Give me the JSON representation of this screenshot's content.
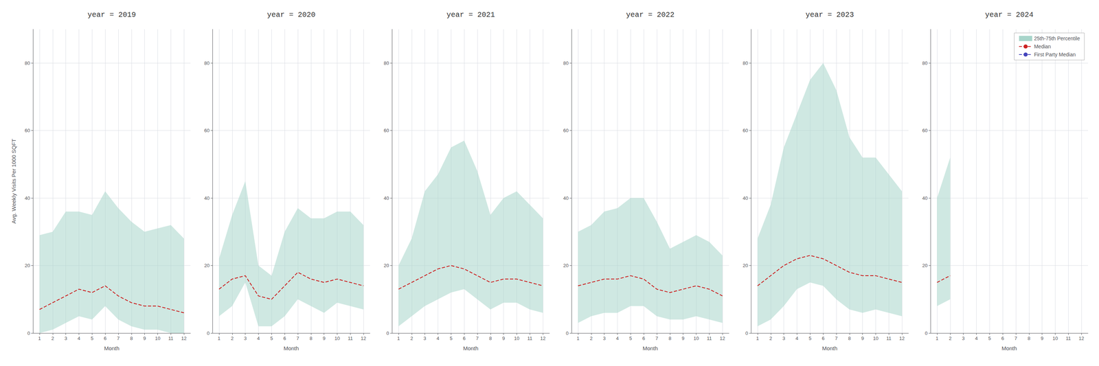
{
  "chart_data": [
    {
      "type": "line",
      "title": "year = 2019",
      "x_label": "Month",
      "y_label": "Avg. Weekly Visits Per 1000 SQFT",
      "x": [
        1,
        2,
        3,
        4,
        5,
        6,
        7,
        8,
        9,
        10,
        11,
        12
      ],
      "xlim": [
        0.5,
        12.5
      ],
      "xticks": [
        1,
        2,
        3,
        4,
        5,
        6,
        7,
        8,
        9,
        10,
        11,
        12
      ],
      "ylim": [
        0,
        90
      ],
      "yticks": [
        0,
        20,
        40,
        60,
        80
      ],
      "grid": true,
      "series": [
        {
          "name": "25th-75th Percentile",
          "type": "band",
          "color": "#a8d5ca",
          "lower": [
            0,
            1,
            3,
            5,
            4,
            8,
            4,
            2,
            1,
            1,
            0,
            0
          ],
          "upper": [
            29,
            30,
            36,
            36,
            35,
            42,
            37,
            33,
            30,
            31,
            32,
            28
          ]
        },
        {
          "name": "Median",
          "type": "line",
          "color": "#cc2222",
          "line_style": "dashed",
          "values": [
            7,
            9,
            11,
            13,
            12,
            14,
            11,
            9,
            8,
            8,
            7,
            6
          ]
        }
      ]
    },
    {
      "type": "line",
      "title": "year = 2020",
      "x_label": "Month",
      "x": [
        1,
        2,
        3,
        4,
        5,
        6,
        7,
        8,
        9,
        10,
        11,
        12
      ],
      "xlim": [
        0.5,
        12.5
      ],
      "xticks": [
        1,
        2,
        3,
        4,
        5,
        6,
        7,
        8,
        9,
        10,
        11,
        12
      ],
      "ylim": [
        0,
        90
      ],
      "yticks": [
        0,
        20,
        40,
        60,
        80
      ],
      "grid": true,
      "series": [
        {
          "name": "25th-75th Percentile",
          "type": "band",
          "color": "#a8d5ca",
          "lower": [
            5,
            8,
            15,
            2,
            2,
            5,
            10,
            8,
            6,
            9,
            8,
            7
          ],
          "upper": [
            22,
            35,
            45,
            20,
            17,
            30,
            37,
            34,
            34,
            36,
            36,
            32
          ]
        },
        {
          "name": "Median",
          "type": "line",
          "color": "#cc2222",
          "line_style": "dashed",
          "values": [
            13,
            16,
            17,
            11,
            10,
            14,
            18,
            16,
            15,
            16,
            15,
            14
          ]
        }
      ]
    },
    {
      "type": "line",
      "title": "year = 2021",
      "x_label": "Month",
      "x": [
        1,
        2,
        3,
        4,
        5,
        6,
        7,
        8,
        9,
        10,
        11,
        12
      ],
      "xlim": [
        0.5,
        12.5
      ],
      "xticks": [
        1,
        2,
        3,
        4,
        5,
        6,
        7,
        8,
        9,
        10,
        11,
        12
      ],
      "ylim": [
        0,
        90
      ],
      "yticks": [
        0,
        20,
        40,
        60,
        80
      ],
      "grid": true,
      "series": [
        {
          "name": "25th-75th Percentile",
          "type": "band",
          "color": "#a8d5ca",
          "lower": [
            2,
            5,
            8,
            10,
            12,
            13,
            10,
            7,
            9,
            9,
            7,
            6
          ],
          "upper": [
            20,
            28,
            42,
            47,
            55,
            57,
            48,
            35,
            40,
            42,
            38,
            34
          ]
        },
        {
          "name": "Median",
          "type": "line",
          "color": "#cc2222",
          "line_style": "dashed",
          "values": [
            13,
            15,
            17,
            19,
            20,
            19,
            17,
            15,
            16,
            16,
            15,
            14
          ]
        }
      ]
    },
    {
      "type": "line",
      "title": "year = 2022",
      "x_label": "Month",
      "x": [
        1,
        2,
        3,
        4,
        5,
        6,
        7,
        8,
        9,
        10,
        11,
        12
      ],
      "xlim": [
        0.5,
        12.5
      ],
      "xticks": [
        1,
        2,
        3,
        4,
        5,
        6,
        7,
        8,
        9,
        10,
        11,
        12
      ],
      "ylim": [
        0,
        90
      ],
      "yticks": [
        0,
        20,
        40,
        60,
        80
      ],
      "grid": true,
      "series": [
        {
          "name": "25th-75th Percentile",
          "type": "band",
          "color": "#a8d5ca",
          "lower": [
            3,
            5,
            6,
            6,
            8,
            8,
            5,
            4,
            4,
            5,
            4,
            3
          ],
          "upper": [
            30,
            32,
            36,
            37,
            40,
            40,
            33,
            25,
            27,
            29,
            27,
            23
          ]
        },
        {
          "name": "Median",
          "type": "line",
          "color": "#cc2222",
          "line_style": "dashed",
          "values": [
            14,
            15,
            16,
            16,
            17,
            16,
            13,
            12,
            13,
            14,
            13,
            11
          ]
        }
      ]
    },
    {
      "type": "line",
      "title": "year = 2023",
      "x_label": "Month",
      "x": [
        1,
        2,
        3,
        4,
        5,
        6,
        7,
        8,
        9,
        10,
        11,
        12
      ],
      "xlim": [
        0.5,
        12.5
      ],
      "xticks": [
        1,
        2,
        3,
        4,
        5,
        6,
        7,
        8,
        9,
        10,
        11,
        12
      ],
      "ylim": [
        0,
        90
      ],
      "yticks": [
        0,
        20,
        40,
        60,
        80
      ],
      "grid": true,
      "series": [
        {
          "name": "25th-75th Percentile",
          "type": "band",
          "color": "#a8d5ca",
          "lower": [
            2,
            4,
            8,
            13,
            15,
            14,
            10,
            7,
            6,
            7,
            6,
            5
          ],
          "upper": [
            28,
            38,
            55,
            65,
            75,
            80,
            72,
            58,
            52,
            52,
            47,
            42
          ]
        },
        {
          "name": "Median",
          "type": "line",
          "color": "#cc2222",
          "line_style": "dashed",
          "values": [
            14,
            17,
            20,
            22,
            23,
            22,
            20,
            18,
            17,
            17,
            16,
            15
          ]
        }
      ]
    },
    {
      "type": "line",
      "title": "year = 2024",
      "x_label": "Month",
      "x": [
        1,
        2
      ],
      "xlim": [
        0.5,
        12.5
      ],
      "xticks": [
        1,
        2,
        3,
        4,
        5,
        6,
        7,
        8,
        9,
        10,
        11,
        12
      ],
      "ylim": [
        0,
        90
      ],
      "yticks": [
        0,
        20,
        40,
        60,
        80
      ],
      "grid": true,
      "legend": "upper right",
      "series": [
        {
          "name": "25th-75th Percentile",
          "type": "band",
          "color": "#a8d5ca",
          "lower": [
            8,
            10
          ],
          "upper": [
            40,
            52
          ]
        },
        {
          "name": "Median",
          "type": "line",
          "color": "#cc2222",
          "line_style": "dashed",
          "values": [
            15,
            17
          ]
        },
        {
          "name": "First Party Median",
          "type": "line",
          "color": "#4444bb",
          "line_style": "dashed",
          "values": [
            null,
            null
          ]
        }
      ]
    }
  ]
}
